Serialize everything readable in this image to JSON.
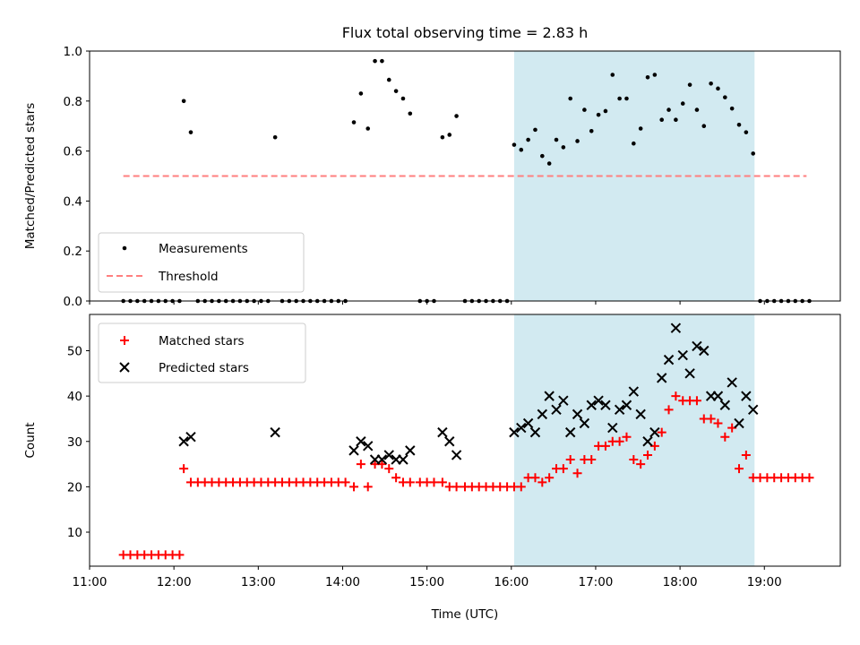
{
  "title": "Flux total observing time = 2.83 h",
  "xlabel": "Time (UTC)",
  "colors": {
    "shade": "#add8e6",
    "measurement": "#000000",
    "threshold": "#ff7f7f",
    "matched": "#ff0000",
    "predicted": "#000000"
  },
  "chart_data": [
    {
      "type": "scatter",
      "panel": "top",
      "ylabel": "Matched/Predicted stars",
      "xlim": [
        "11:00",
        "19:54"
      ],
      "ylim": [
        0,
        1
      ],
      "yticks": [
        "0.0",
        "0.2",
        "0.4",
        "0.6",
        "0.8",
        "1.0"
      ],
      "xticks": [
        "11:00",
        "12:00",
        "13:00",
        "14:00",
        "15:00",
        "16:00",
        "17:00",
        "18:00",
        "19:00"
      ],
      "shaded_interval": [
        "16:02",
        "18:53"
      ],
      "legend": {
        "placement": "lower-left",
        "entries": [
          "Measurements",
          "Threshold"
        ]
      },
      "threshold": {
        "name": "Threshold",
        "y": 0.5,
        "x": [
          "11:24",
          "19:30"
        ],
        "style": "dashed"
      },
      "series": [
        {
          "name": "Measurements",
          "marker": "dot",
          "points": [
            [
              "11:24",
              0
            ],
            [
              "11:29",
              0
            ],
            [
              "11:34",
              0
            ],
            [
              "11:39",
              0
            ],
            [
              "11:44",
              0
            ],
            [
              "11:49",
              0
            ],
            [
              "11:54",
              0
            ],
            [
              "11:59",
              0
            ],
            [
              "12:04",
              0
            ],
            [
              "12:07",
              0.8
            ],
            [
              "12:12",
              0.675
            ],
            [
              "12:17",
              0
            ],
            [
              "12:22",
              0
            ],
            [
              "12:27",
              0
            ],
            [
              "12:32",
              0
            ],
            [
              "12:37",
              0
            ],
            [
              "12:42",
              0
            ],
            [
              "12:47",
              0
            ],
            [
              "12:52",
              0
            ],
            [
              "12:57",
              0
            ],
            [
              "13:02",
              0
            ],
            [
              "13:07",
              0
            ],
            [
              "13:12",
              0.655
            ],
            [
              "13:17",
              0
            ],
            [
              "13:22",
              0
            ],
            [
              "13:27",
              0
            ],
            [
              "13:32",
              0
            ],
            [
              "13:37",
              0
            ],
            [
              "13:42",
              0
            ],
            [
              "13:47",
              0
            ],
            [
              "13:52",
              0
            ],
            [
              "13:57",
              0
            ],
            [
              "14:02",
              0
            ],
            [
              "14:08",
              0.715
            ],
            [
              "14:13",
              0.83
            ],
            [
              "14:18",
              0.69
            ],
            [
              "14:23",
              0.96
            ],
            [
              "14:28",
              0.96
            ],
            [
              "14:33",
              0.885
            ],
            [
              "14:38",
              0.84
            ],
            [
              "14:43",
              0.81
            ],
            [
              "14:48",
              0.75
            ],
            [
              "14:55",
              0
            ],
            [
              "15:00",
              0
            ],
            [
              "15:05",
              0
            ],
            [
              "15:11",
              0.655
            ],
            [
              "15:16",
              0.665
            ],
            [
              "15:21",
              0.74
            ],
            [
              "15:27",
              0
            ],
            [
              "15:32",
              0
            ],
            [
              "15:37",
              0
            ],
            [
              "15:42",
              0
            ],
            [
              "15:47",
              0
            ],
            [
              "15:52",
              0
            ],
            [
              "15:57",
              0
            ],
            [
              "16:02",
              0.625
            ],
            [
              "16:07",
              0.605
            ],
            [
              "16:12",
              0.645
            ],
            [
              "16:17",
              0.685
            ],
            [
              "16:22",
              0.58
            ],
            [
              "16:27",
              0.55
            ],
            [
              "16:32",
              0.645
            ],
            [
              "16:37",
              0.615
            ],
            [
              "16:42",
              0.81
            ],
            [
              "16:47",
              0.64
            ],
            [
              "16:52",
              0.765
            ],
            [
              "16:57",
              0.68
            ],
            [
              "17:02",
              0.745
            ],
            [
              "17:07",
              0.76
            ],
            [
              "17:12",
              0.905
            ],
            [
              "17:17",
              0.81
            ],
            [
              "17:22",
              0.81
            ],
            [
              "17:27",
              0.63
            ],
            [
              "17:32",
              0.69
            ],
            [
              "17:37",
              0.895
            ],
            [
              "17:42",
              0.905
            ],
            [
              "17:47",
              0.725
            ],
            [
              "17:52",
              0.765
            ],
            [
              "17:57",
              0.725
            ],
            [
              "18:02",
              0.79
            ],
            [
              "18:07",
              0.865
            ],
            [
              "18:12",
              0.765
            ],
            [
              "18:17",
              0.7
            ],
            [
              "18:22",
              0.87
            ],
            [
              "18:27",
              0.85
            ],
            [
              "18:32",
              0.815
            ],
            [
              "18:37",
              0.77
            ],
            [
              "18:42",
              0.705
            ],
            [
              "18:47",
              0.675
            ],
            [
              "18:52",
              0.59
            ],
            [
              "18:57",
              0
            ],
            [
              "19:02",
              0
            ],
            [
              "19:07",
              0
            ],
            [
              "19:12",
              0
            ],
            [
              "19:17",
              0
            ],
            [
              "19:22",
              0
            ],
            [
              "19:27",
              0
            ],
            [
              "19:32",
              0
            ]
          ]
        }
      ]
    },
    {
      "type": "scatter",
      "panel": "bottom",
      "ylabel": "Count",
      "xlim": [
        "11:00",
        "19:54"
      ],
      "ylim": [
        2.5,
        58
      ],
      "yticks": [
        "10",
        "20",
        "30",
        "40",
        "50"
      ],
      "xticks": [
        "11:00",
        "12:00",
        "13:00",
        "14:00",
        "15:00",
        "16:00",
        "17:00",
        "18:00",
        "19:00"
      ],
      "shaded_interval": [
        "16:02",
        "18:53"
      ],
      "legend": {
        "placement": "top-left",
        "entries": [
          "Matched stars",
          "Predicted stars"
        ]
      },
      "series": [
        {
          "name": "Matched stars",
          "marker": "plus",
          "points": [
            [
              "11:24",
              5
            ],
            [
              "11:29",
              5
            ],
            [
              "11:34",
              5
            ],
            [
              "11:39",
              5
            ],
            [
              "11:44",
              5
            ],
            [
              "11:49",
              5
            ],
            [
              "11:54",
              5
            ],
            [
              "11:59",
              5
            ],
            [
              "12:04",
              5
            ],
            [
              "12:07",
              24
            ],
            [
              "12:12",
              21
            ],
            [
              "12:17",
              21
            ],
            [
              "12:22",
              21
            ],
            [
              "12:27",
              21
            ],
            [
              "12:32",
              21
            ],
            [
              "12:37",
              21
            ],
            [
              "12:42",
              21
            ],
            [
              "12:47",
              21
            ],
            [
              "12:52",
              21
            ],
            [
              "12:57",
              21
            ],
            [
              "13:02",
              21
            ],
            [
              "13:07",
              21
            ],
            [
              "13:12",
              21
            ],
            [
              "13:17",
              21
            ],
            [
              "13:22",
              21
            ],
            [
              "13:27",
              21
            ],
            [
              "13:32",
              21
            ],
            [
              "13:37",
              21
            ],
            [
              "13:42",
              21
            ],
            [
              "13:47",
              21
            ],
            [
              "13:52",
              21
            ],
            [
              "13:57",
              21
            ],
            [
              "14:02",
              21
            ],
            [
              "14:08",
              20
            ],
            [
              "14:13",
              25
            ],
            [
              "14:18",
              20
            ],
            [
              "14:23",
              25
            ],
            [
              "14:28",
              25
            ],
            [
              "14:33",
              24
            ],
            [
              "14:38",
              22
            ],
            [
              "14:43",
              21
            ],
            [
              "14:48",
              21
            ],
            [
              "14:55",
              21
            ],
            [
              "15:00",
              21
            ],
            [
              "15:05",
              21
            ],
            [
              "15:11",
              21
            ],
            [
              "15:16",
              20
            ],
            [
              "15:21",
              20
            ],
            [
              "15:27",
              20
            ],
            [
              "15:32",
              20
            ],
            [
              "15:37",
              20
            ],
            [
              "15:42",
              20
            ],
            [
              "15:47",
              20
            ],
            [
              "15:52",
              20
            ],
            [
              "15:57",
              20
            ],
            [
              "16:02",
              20
            ],
            [
              "16:07",
              20
            ],
            [
              "16:12",
              22
            ],
            [
              "16:17",
              22
            ],
            [
              "16:22",
              21
            ],
            [
              "16:27",
              22
            ],
            [
              "16:32",
              24
            ],
            [
              "16:37",
              24
            ],
            [
              "16:42",
              26
            ],
            [
              "16:47",
              23
            ],
            [
              "16:52",
              26
            ],
            [
              "16:57",
              26
            ],
            [
              "17:02",
              29
            ],
            [
              "17:07",
              29
            ],
            [
              "17:12",
              30
            ],
            [
              "17:17",
              30
            ],
            [
              "17:22",
              31
            ],
            [
              "17:27",
              26
            ],
            [
              "17:32",
              25
            ],
            [
              "17:37",
              27
            ],
            [
              "17:42",
              29
            ],
            [
              "17:47",
              32
            ],
            [
              "17:52",
              37
            ],
            [
              "17:57",
              40
            ],
            [
              "18:02",
              39
            ],
            [
              "18:07",
              39
            ],
            [
              "18:12",
              39
            ],
            [
              "18:17",
              35
            ],
            [
              "18:22",
              35
            ],
            [
              "18:27",
              34
            ],
            [
              "18:32",
              31
            ],
            [
              "18:37",
              33
            ],
            [
              "18:42",
              24
            ],
            [
              "18:47",
              27
            ],
            [
              "18:52",
              22
            ],
            [
              "18:57",
              22
            ],
            [
              "19:02",
              22
            ],
            [
              "19:07",
              22
            ],
            [
              "19:12",
              22
            ],
            [
              "19:17",
              22
            ],
            [
              "19:22",
              22
            ],
            [
              "19:27",
              22
            ],
            [
              "19:32",
              22
            ]
          ]
        },
        {
          "name": "Predicted stars",
          "marker": "x",
          "points": [
            [
              "12:07",
              30
            ],
            [
              "12:12",
              31
            ],
            [
              "13:12",
              32
            ],
            [
              "14:08",
              28
            ],
            [
              "14:13",
              30
            ],
            [
              "14:18",
              29
            ],
            [
              "14:23",
              26
            ],
            [
              "14:28",
              26
            ],
            [
              "14:33",
              27
            ],
            [
              "14:38",
              26
            ],
            [
              "14:43",
              26
            ],
            [
              "14:48",
              28
            ],
            [
              "15:11",
              32
            ],
            [
              "15:16",
              30
            ],
            [
              "15:21",
              27
            ],
            [
              "16:02",
              32
            ],
            [
              "16:07",
              33
            ],
            [
              "16:12",
              34
            ],
            [
              "16:17",
              32
            ],
            [
              "16:22",
              36
            ],
            [
              "16:27",
              40
            ],
            [
              "16:32",
              37
            ],
            [
              "16:37",
              39
            ],
            [
              "16:42",
              32
            ],
            [
              "16:47",
              36
            ],
            [
              "16:52",
              34
            ],
            [
              "16:57",
              38
            ],
            [
              "17:02",
              39
            ],
            [
              "17:07",
              38
            ],
            [
              "17:12",
              33
            ],
            [
              "17:17",
              37
            ],
            [
              "17:22",
              38
            ],
            [
              "17:27",
              41
            ],
            [
              "17:32",
              36
            ],
            [
              "17:37",
              30
            ],
            [
              "17:42",
              32
            ],
            [
              "17:47",
              44
            ],
            [
              "17:52",
              48
            ],
            [
              "17:57",
              55
            ],
            [
              "18:02",
              49
            ],
            [
              "18:07",
              45
            ],
            [
              "18:12",
              51
            ],
            [
              "18:17",
              50
            ],
            [
              "18:22",
              40
            ],
            [
              "18:27",
              40
            ],
            [
              "18:32",
              38
            ],
            [
              "18:37",
              43
            ],
            [
              "18:42",
              34
            ],
            [
              "18:47",
              40
            ],
            [
              "18:52",
              37
            ]
          ]
        }
      ]
    }
  ]
}
